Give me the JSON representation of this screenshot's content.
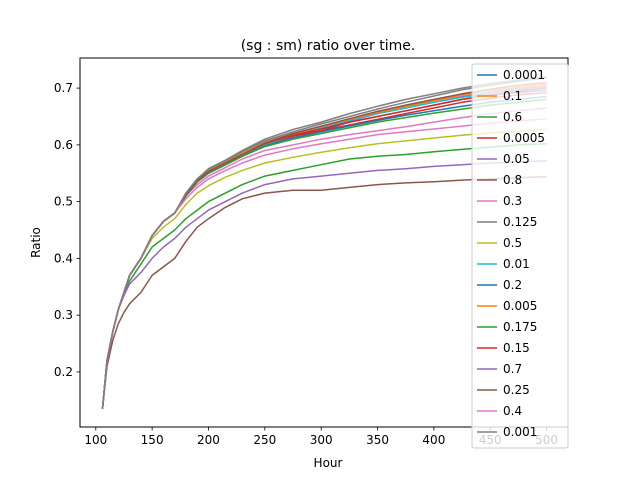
{
  "chart_data": {
    "type": "line",
    "title": "(sg : sm) ratio over time.",
    "xlabel": "Hour",
    "ylabel": "Ratio",
    "xlim": [
      86,
      519
    ],
    "ylim": [
      0.103,
      0.753
    ],
    "x_ticks": [
      100,
      150,
      200,
      250,
      300,
      350,
      400,
      450,
      500
    ],
    "y_ticks": [
      0.2,
      0.3,
      0.4,
      0.5,
      0.6,
      0.7
    ],
    "x": [
      106,
      110,
      115,
      120,
      125,
      130,
      135,
      140,
      150,
      160,
      170,
      180,
      190,
      200,
      215,
      230,
      250,
      275,
      300,
      325,
      350,
      375,
      400,
      425,
      450,
      475,
      500
    ],
    "legend_position": "right",
    "grid": false,
    "series": [
      {
        "name": "0.0001",
        "color": "#1f77b4",
        "values": [
          0.135,
          0.22,
          0.27,
          0.31,
          0.34,
          0.37,
          0.385,
          0.4,
          0.44,
          0.465,
          0.48,
          0.51,
          0.535,
          0.55,
          0.565,
          0.58,
          0.6,
          0.615,
          0.625,
          0.64,
          0.65,
          0.66,
          0.67,
          0.68,
          0.688,
          0.692,
          0.696
        ]
      },
      {
        "name": "0.1",
        "color": "#ff7f0e",
        "values": [
          0.135,
          0.22,
          0.27,
          0.31,
          0.34,
          0.37,
          0.385,
          0.4,
          0.44,
          0.465,
          0.48,
          0.513,
          0.538,
          0.555,
          0.57,
          0.585,
          0.605,
          0.62,
          0.632,
          0.645,
          0.658,
          0.668,
          0.678,
          0.688,
          0.695,
          0.7,
          0.705
        ]
      },
      {
        "name": "0.6",
        "color": "#2ca02c",
        "values": [
          0.135,
          0.22,
          0.27,
          0.31,
          0.335,
          0.36,
          0.375,
          0.39,
          0.42,
          0.435,
          0.45,
          0.47,
          0.485,
          0.5,
          0.515,
          0.53,
          0.545,
          0.555,
          0.565,
          0.575,
          0.58,
          0.583,
          0.588,
          0.592,
          0.596,
          0.6,
          0.602
        ]
      },
      {
        "name": "0.0005",
        "color": "#d62728",
        "values": [
          0.135,
          0.22,
          0.27,
          0.31,
          0.34,
          0.37,
          0.385,
          0.4,
          0.44,
          0.465,
          0.48,
          0.51,
          0.535,
          0.55,
          0.565,
          0.58,
          0.6,
          0.615,
          0.625,
          0.635,
          0.645,
          0.655,
          0.665,
          0.675,
          0.682,
          0.688,
          0.692
        ]
      },
      {
        "name": "0.05",
        "color": "#9467bd",
        "values": [
          0.135,
          0.22,
          0.27,
          0.31,
          0.34,
          0.37,
          0.385,
          0.4,
          0.44,
          0.465,
          0.48,
          0.51,
          0.535,
          0.55,
          0.565,
          0.58,
          0.6,
          0.617,
          0.63,
          0.642,
          0.655,
          0.665,
          0.675,
          0.685,
          0.692,
          0.698,
          0.702
        ]
      },
      {
        "name": "0.8",
        "color": "#8c564b",
        "values": [
          0.135,
          0.21,
          0.255,
          0.285,
          0.305,
          0.32,
          0.33,
          0.34,
          0.37,
          0.385,
          0.4,
          0.43,
          0.455,
          0.47,
          0.49,
          0.505,
          0.515,
          0.52,
          0.52,
          0.525,
          0.53,
          0.533,
          0.535,
          0.538,
          0.54,
          0.542,
          0.544
        ]
      },
      {
        "name": "0.3",
        "color": "#e377c2",
        "values": [
          0.135,
          0.22,
          0.27,
          0.31,
          0.34,
          0.37,
          0.385,
          0.4,
          0.44,
          0.465,
          0.48,
          0.51,
          0.53,
          0.545,
          0.56,
          0.575,
          0.59,
          0.6,
          0.61,
          0.618,
          0.625,
          0.632,
          0.64,
          0.648,
          0.655,
          0.66,
          0.665
        ]
      },
      {
        "name": "0.125",
        "color": "#7f7f7f",
        "values": [
          0.135,
          0.22,
          0.27,
          0.31,
          0.34,
          0.37,
          0.385,
          0.4,
          0.44,
          0.465,
          0.48,
          0.515,
          0.54,
          0.557,
          0.572,
          0.588,
          0.607,
          0.623,
          0.637,
          0.65,
          0.663,
          0.675,
          0.686,
          0.697,
          0.705,
          0.712,
          0.718
        ]
      },
      {
        "name": "0.5",
        "color": "#bcbd22",
        "values": [
          0.135,
          0.22,
          0.27,
          0.31,
          0.34,
          0.37,
          0.385,
          0.4,
          0.435,
          0.455,
          0.47,
          0.495,
          0.515,
          0.528,
          0.543,
          0.555,
          0.568,
          0.578,
          0.587,
          0.595,
          0.602,
          0.607,
          0.612,
          0.617,
          0.621,
          0.624,
          0.627
        ]
      },
      {
        "name": "0.01",
        "color": "#17becf",
        "values": [
          0.135,
          0.22,
          0.27,
          0.31,
          0.34,
          0.37,
          0.385,
          0.4,
          0.44,
          0.465,
          0.48,
          0.51,
          0.535,
          0.55,
          0.565,
          0.58,
          0.6,
          0.617,
          0.63,
          0.643,
          0.655,
          0.665,
          0.675,
          0.684,
          0.691,
          0.696,
          0.7
        ]
      },
      {
        "name": "0.2",
        "color": "#1f77b4",
        "values": [
          0.135,
          0.22,
          0.27,
          0.31,
          0.34,
          0.37,
          0.385,
          0.4,
          0.44,
          0.465,
          0.48,
          0.51,
          0.535,
          0.55,
          0.565,
          0.58,
          0.598,
          0.612,
          0.623,
          0.633,
          0.643,
          0.652,
          0.66,
          0.668,
          0.675,
          0.68,
          0.685
        ]
      },
      {
        "name": "0.005",
        "color": "#ff7f0e",
        "values": [
          0.135,
          0.22,
          0.27,
          0.31,
          0.34,
          0.37,
          0.385,
          0.4,
          0.44,
          0.465,
          0.48,
          0.512,
          0.537,
          0.553,
          0.568,
          0.583,
          0.603,
          0.619,
          0.632,
          0.645,
          0.657,
          0.668,
          0.678,
          0.688,
          0.696,
          0.702,
          0.707
        ]
      },
      {
        "name": "0.175",
        "color": "#2ca02c",
        "values": [
          0.135,
          0.22,
          0.27,
          0.31,
          0.34,
          0.37,
          0.385,
          0.4,
          0.44,
          0.465,
          0.48,
          0.51,
          0.535,
          0.55,
          0.565,
          0.58,
          0.597,
          0.61,
          0.62,
          0.63,
          0.64,
          0.648,
          0.656,
          0.663,
          0.67,
          0.675,
          0.68
        ]
      },
      {
        "name": "0.15",
        "color": "#d62728",
        "values": [
          0.135,
          0.22,
          0.27,
          0.31,
          0.34,
          0.37,
          0.385,
          0.4,
          0.44,
          0.465,
          0.48,
          0.512,
          0.537,
          0.553,
          0.568,
          0.583,
          0.602,
          0.617,
          0.628,
          0.64,
          0.65,
          0.66,
          0.67,
          0.68,
          0.688,
          0.694,
          0.7
        ]
      },
      {
        "name": "0.7",
        "color": "#9467bd",
        "values": [
          0.135,
          0.22,
          0.27,
          0.31,
          0.335,
          0.355,
          0.365,
          0.375,
          0.4,
          0.42,
          0.435,
          0.455,
          0.47,
          0.485,
          0.5,
          0.515,
          0.53,
          0.54,
          0.545,
          0.55,
          0.555,
          0.558,
          0.562,
          0.565,
          0.568,
          0.57,
          0.572
        ]
      },
      {
        "name": "0.25",
        "color": "#8c564b",
        "values": [
          0.135,
          0.22,
          0.27,
          0.31,
          0.34,
          0.37,
          0.385,
          0.4,
          0.44,
          0.465,
          0.48,
          0.512,
          0.537,
          0.553,
          0.568,
          0.583,
          0.603,
          0.62,
          0.633,
          0.646,
          0.659,
          0.67,
          0.68,
          0.69,
          0.698,
          0.705,
          0.71
        ]
      },
      {
        "name": "0.4",
        "color": "#e377c2",
        "values": [
          0.135,
          0.22,
          0.27,
          0.31,
          0.34,
          0.37,
          0.385,
          0.4,
          0.44,
          0.465,
          0.48,
          0.505,
          0.525,
          0.54,
          0.555,
          0.568,
          0.582,
          0.593,
          0.602,
          0.61,
          0.618,
          0.623,
          0.628,
          0.633,
          0.638,
          0.642,
          0.646
        ]
      },
      {
        "name": "0.001",
        "color": "#7f7f7f",
        "values": [
          0.135,
          0.22,
          0.27,
          0.31,
          0.34,
          0.37,
          0.385,
          0.4,
          0.44,
          0.465,
          0.48,
          0.515,
          0.54,
          0.558,
          0.573,
          0.59,
          0.61,
          0.627,
          0.64,
          0.655,
          0.668,
          0.68,
          0.69,
          0.7,
          0.708,
          0.714,
          0.72
        ]
      }
    ]
  }
}
